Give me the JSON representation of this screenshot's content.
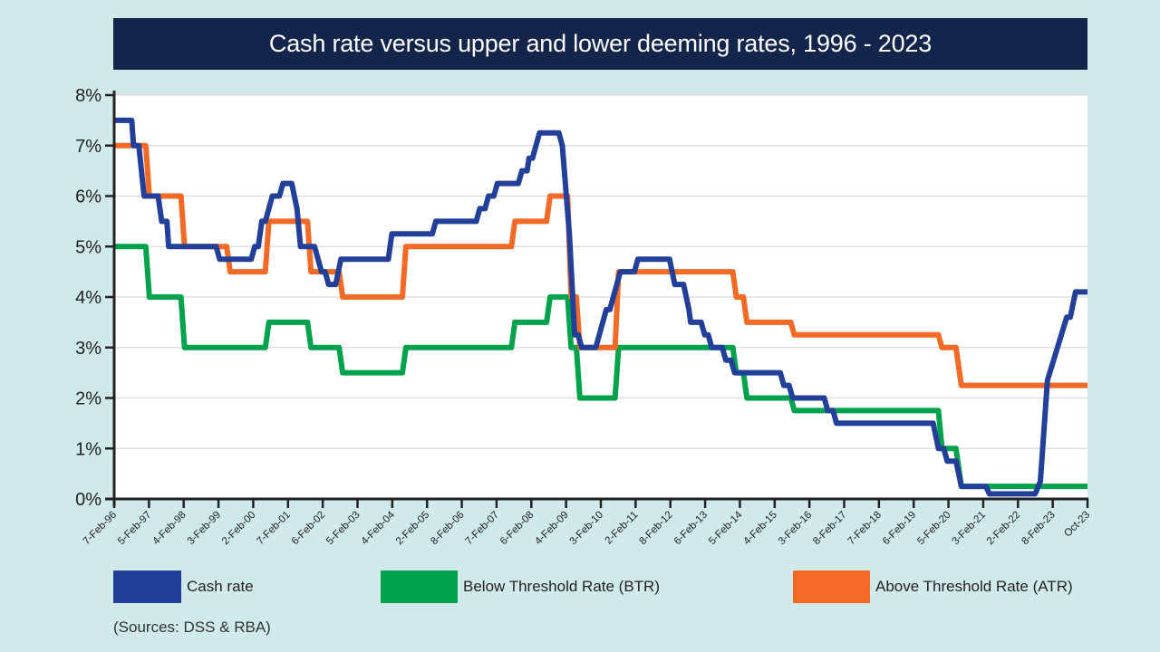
{
  "chart_data": {
    "type": "line",
    "title": "Cash rate versus upper and lower deeming rates, 1996 - 2023",
    "xlabel": "",
    "ylabel": "",
    "ylim": [
      0,
      8
    ],
    "xlim": [
      1996.1,
      2023.79
    ],
    "grid": true,
    "legend_position": "bottom",
    "y_ticks": [
      "0%",
      "1%",
      "2%",
      "3%",
      "4%",
      "5%",
      "6%",
      "7%",
      "8%"
    ],
    "x_tick_labels": [
      "7-Feb-96",
      "5-Feb-97",
      "4-Feb-98",
      "3-Feb-99",
      "2-Feb-00",
      "7-Feb-01",
      "6-Feb-02",
      "5-Feb-03",
      "4-Feb-04",
      "2-Feb-05",
      "8-Feb-06",
      "7-Feb-07",
      "6-Feb-08",
      "4-Feb-09",
      "3-Feb-10",
      "2-Feb-11",
      "8-Feb-12",
      "6-Feb-13",
      "5-Feb-14",
      "4-Feb-15",
      "3-Feb-16",
      "8-Feb-17",
      "7-Feb-18",
      "6-Feb-19",
      "5-Feb-20",
      "3-Feb-21",
      "2-Feb-22",
      "8-Feb-23",
      "Oct-23"
    ],
    "series": [
      {
        "name": "Cash rate",
        "color": "#22409a",
        "points": [
          [
            1996.1,
            7.5
          ],
          [
            1996.6,
            7.5
          ],
          [
            1996.65,
            7.0
          ],
          [
            1996.8,
            7.0
          ],
          [
            1996.95,
            6.0
          ],
          [
            1997.35,
            6.0
          ],
          [
            1997.45,
            5.5
          ],
          [
            1997.6,
            5.5
          ],
          [
            1997.65,
            5.0
          ],
          [
            1999.0,
            5.0
          ],
          [
            1999.1,
            4.75
          ],
          [
            2000.0,
            4.75
          ],
          [
            2000.1,
            5.0
          ],
          [
            2000.2,
            5.0
          ],
          [
            2000.3,
            5.5
          ],
          [
            2000.4,
            5.5
          ],
          [
            2000.6,
            6.0
          ],
          [
            2000.8,
            6.0
          ],
          [
            2000.9,
            6.25
          ],
          [
            2001.15,
            6.25
          ],
          [
            2001.3,
            5.75
          ],
          [
            2001.4,
            5.0
          ],
          [
            2001.8,
            5.0
          ],
          [
            2002.0,
            4.5
          ],
          [
            2002.1,
            4.5
          ],
          [
            2002.2,
            4.25
          ],
          [
            2002.4,
            4.25
          ],
          [
            2002.55,
            4.75
          ],
          [
            2003.9,
            4.75
          ],
          [
            2004.0,
            5.25
          ],
          [
            2005.15,
            5.25
          ],
          [
            2005.25,
            5.5
          ],
          [
            2006.4,
            5.5
          ],
          [
            2006.5,
            5.75
          ],
          [
            2006.65,
            5.75
          ],
          [
            2006.75,
            6.0
          ],
          [
            2006.9,
            6.0
          ],
          [
            2007.0,
            6.25
          ],
          [
            2007.6,
            6.25
          ],
          [
            2007.7,
            6.5
          ],
          [
            2007.85,
            6.5
          ],
          [
            2007.9,
            6.75
          ],
          [
            2008.0,
            6.75
          ],
          [
            2008.2,
            7.25
          ],
          [
            2008.75,
            7.25
          ],
          [
            2008.85,
            7.0
          ],
          [
            2009.05,
            5.25
          ],
          [
            2009.2,
            3.25
          ],
          [
            2009.3,
            3.25
          ],
          [
            2009.4,
            3.0
          ],
          [
            2009.8,
            3.0
          ],
          [
            2010.1,
            3.75
          ],
          [
            2010.2,
            3.75
          ],
          [
            2010.5,
            4.5
          ],
          [
            2010.9,
            4.5
          ],
          [
            2011.0,
            4.75
          ],
          [
            2011.9,
            4.75
          ],
          [
            2012.05,
            4.25
          ],
          [
            2012.3,
            4.25
          ],
          [
            2012.45,
            3.75
          ],
          [
            2012.5,
            3.5
          ],
          [
            2012.8,
            3.5
          ],
          [
            2012.9,
            3.25
          ],
          [
            2013.0,
            3.25
          ],
          [
            2013.1,
            3.0
          ],
          [
            2013.4,
            3.0
          ],
          [
            2013.5,
            2.75
          ],
          [
            2013.65,
            2.75
          ],
          [
            2013.75,
            2.5
          ],
          [
            2015.05,
            2.5
          ],
          [
            2015.15,
            2.25
          ],
          [
            2015.3,
            2.25
          ],
          [
            2015.4,
            2.0
          ],
          [
            2016.3,
            2.0
          ],
          [
            2016.4,
            1.75
          ],
          [
            2016.55,
            1.75
          ],
          [
            2016.65,
            1.5
          ],
          [
            2019.4,
            1.5
          ],
          [
            2019.55,
            1.0
          ],
          [
            2019.7,
            1.0
          ],
          [
            2019.8,
            0.75
          ],
          [
            2020.05,
            0.75
          ],
          [
            2020.2,
            0.25
          ],
          [
            2020.9,
            0.25
          ],
          [
            2021.0,
            0.1
          ],
          [
            2022.3,
            0.1
          ],
          [
            2022.45,
            0.35
          ],
          [
            2022.65,
            2.35
          ],
          [
            2023.2,
            3.6
          ],
          [
            2023.3,
            3.6
          ],
          [
            2023.45,
            4.1
          ],
          [
            2023.79,
            4.1
          ]
        ]
      },
      {
        "name": "Below Threshold Rate (BTR)",
        "color": "#00a34b",
        "points": [
          [
            1996.1,
            5.0
          ],
          [
            1997.0,
            5.0
          ],
          [
            1997.1,
            4.0
          ],
          [
            1998.0,
            4.0
          ],
          [
            1998.1,
            3.0
          ],
          [
            2000.4,
            3.0
          ],
          [
            2000.5,
            3.5
          ],
          [
            2001.6,
            3.5
          ],
          [
            2001.7,
            3.0
          ],
          [
            2002.5,
            3.0
          ],
          [
            2002.6,
            2.5
          ],
          [
            2004.3,
            2.5
          ],
          [
            2004.4,
            3.0
          ],
          [
            2007.4,
            3.0
          ],
          [
            2007.5,
            3.5
          ],
          [
            2008.4,
            3.5
          ],
          [
            2008.5,
            4.0
          ],
          [
            2009.0,
            4.0
          ],
          [
            2009.1,
            3.0
          ],
          [
            2009.25,
            3.0
          ],
          [
            2009.35,
            2.0
          ],
          [
            2010.35,
            2.0
          ],
          [
            2010.45,
            3.0
          ],
          [
            2013.7,
            3.0
          ],
          [
            2013.8,
            2.5
          ],
          [
            2014.0,
            2.5
          ],
          [
            2014.1,
            2.0
          ],
          [
            2015.35,
            2.0
          ],
          [
            2015.45,
            1.75
          ],
          [
            2019.55,
            1.75
          ],
          [
            2019.65,
            1.0
          ],
          [
            2020.05,
            1.0
          ],
          [
            2020.2,
            0.25
          ],
          [
            2023.79,
            0.25
          ]
        ]
      },
      {
        "name": "Above Threshold Rate (ATR)",
        "color": "#f26a25",
        "points": [
          [
            1996.1,
            7.0
          ],
          [
            1997.0,
            7.0
          ],
          [
            1997.1,
            6.0
          ],
          [
            1998.0,
            6.0
          ],
          [
            1998.1,
            5.0
          ],
          [
            1999.3,
            5.0
          ],
          [
            1999.4,
            4.5
          ],
          [
            2000.4,
            4.5
          ],
          [
            2000.5,
            5.5
          ],
          [
            2001.6,
            5.5
          ],
          [
            2001.7,
            4.5
          ],
          [
            2002.5,
            4.5
          ],
          [
            2002.6,
            4.0
          ],
          [
            2004.3,
            4.0
          ],
          [
            2004.4,
            5.0
          ],
          [
            2007.4,
            5.0
          ],
          [
            2007.5,
            5.5
          ],
          [
            2008.4,
            5.5
          ],
          [
            2008.5,
            6.0
          ],
          [
            2009.0,
            6.0
          ],
          [
            2009.1,
            4.0
          ],
          [
            2009.25,
            4.0
          ],
          [
            2009.35,
            3.0
          ],
          [
            2010.35,
            3.0
          ],
          [
            2010.45,
            4.5
          ],
          [
            2013.7,
            4.5
          ],
          [
            2013.8,
            4.0
          ],
          [
            2014.0,
            4.0
          ],
          [
            2014.1,
            3.5
          ],
          [
            2015.35,
            3.5
          ],
          [
            2015.45,
            3.25
          ],
          [
            2019.55,
            3.25
          ],
          [
            2019.65,
            3.0
          ],
          [
            2020.05,
            3.0
          ],
          [
            2020.2,
            2.25
          ],
          [
            2023.79,
            2.25
          ]
        ]
      }
    ],
    "legend": [
      "Cash rate",
      "Below Threshold Rate (BTR)",
      "Above Threshold Rate (ATR)"
    ]
  },
  "header": {
    "title": "Cash rate versus upper and lower deeming rates, 1996 - 2023"
  },
  "legend": {
    "items": [
      {
        "label": "Cash rate",
        "color": "#22409a"
      },
      {
        "label": "Below Threshold Rate (BTR)",
        "color": "#00a34b"
      },
      {
        "label": "Above Threshold Rate (ATR)",
        "color": "#f26a25"
      }
    ]
  },
  "footer": {
    "source": "(Sources: DSS & RBA)"
  },
  "colors": {
    "background": "#d0e9e9",
    "title_bar": "#13254a",
    "plot_bg": "#ffffff",
    "grid": "#d9d9d9",
    "axis": "#222222"
  }
}
